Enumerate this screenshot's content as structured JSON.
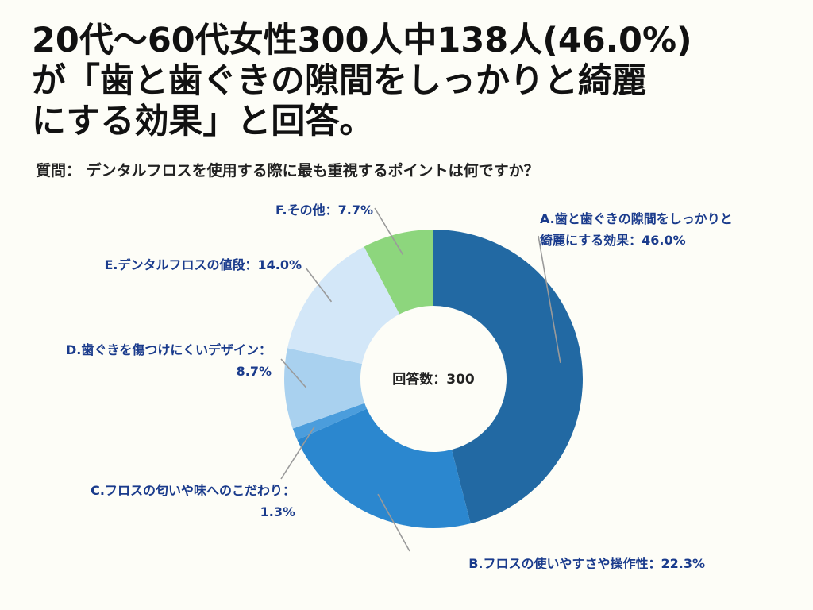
{
  "headline": {
    "line1": "20代〜60代女性300人中138人(46.0%)",
    "line2": "が「歯と歯ぐきの隙間をしっかりと綺麗",
    "line3": "にする効果」と回答。"
  },
  "question": "質問： デンタルフロスを使用する際に最も重視するポイントは何ですか？",
  "chart_data": {
    "type": "pie",
    "donut": true,
    "center_label": "回答数：300",
    "slices": [
      {
        "key": "A",
        "value": 46.0,
        "color": "#2269a3",
        "label_lines": [
          "A.歯と歯ぐきの隙間をしっかりと",
          "綺麗にする効果：46.0%"
        ]
      },
      {
        "key": "B",
        "value": 22.3,
        "color": "#2b87cf",
        "label_lines": [
          "B.フロスの使いやすさや操作性：22.3%"
        ]
      },
      {
        "key": "C",
        "value": 1.3,
        "color": "#4b9ddc",
        "label_lines": [
          "C.フロスの匂いや味へのこだわり：",
          "1.3%"
        ]
      },
      {
        "key": "D",
        "value": 8.7,
        "color": "#a9d1ef",
        "label_lines": [
          "D.歯ぐきを傷つけにくいデザイン：",
          "8.7%"
        ]
      },
      {
        "key": "E",
        "value": 14.0,
        "color": "#d3e7f8",
        "label_lines": [
          "E.デンタルフロスの値段：14.0%"
        ]
      },
      {
        "key": "F",
        "value": 7.7,
        "color": "#8dd67d",
        "label_lines": [
          "F.その他：7.7%"
        ]
      }
    ]
  }
}
